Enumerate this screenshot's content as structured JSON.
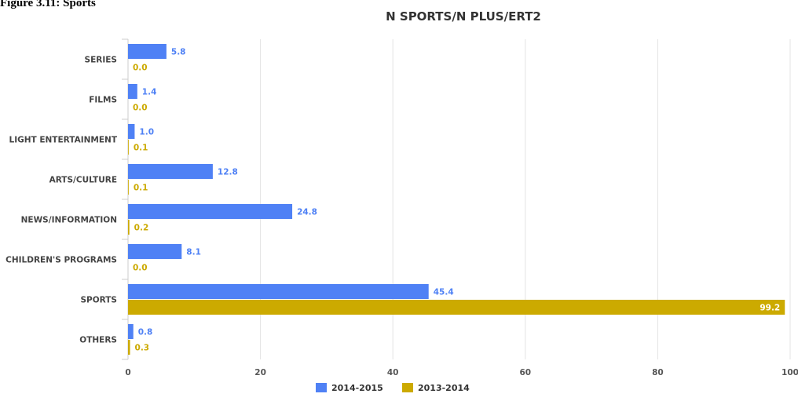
{
  "caption": "Figure 3.11: Sports",
  "colors": {
    "s2014": "#4f81f5",
    "s2013": "#ccaa00"
  },
  "chart_data": {
    "type": "bar",
    "orientation": "horizontal",
    "title": "N SPORTS/N PLUS/ERT2",
    "categories": [
      "SERIES",
      "FILMS",
      "LIGHT ENTERTAINMENT",
      "ARTS/CULTURE",
      "NEWS/INFORMATION",
      "CHILDREN'S PROGRAMS",
      "SPORTS",
      "OTHERS"
    ],
    "series": [
      {
        "name": "2014-2015",
        "values": [
          5.8,
          1.4,
          1.0,
          12.8,
          24.8,
          8.1,
          45.4,
          0.8
        ]
      },
      {
        "name": "2013-2014",
        "values": [
          0.0,
          0.0,
          0.1,
          0.1,
          0.2,
          0.0,
          99.2,
          0.3
        ]
      }
    ],
    "xlim": [
      0,
      100
    ],
    "xticks": [
      0,
      20,
      40,
      60,
      80,
      100
    ],
    "grid": true,
    "legend": "bottom-center"
  }
}
